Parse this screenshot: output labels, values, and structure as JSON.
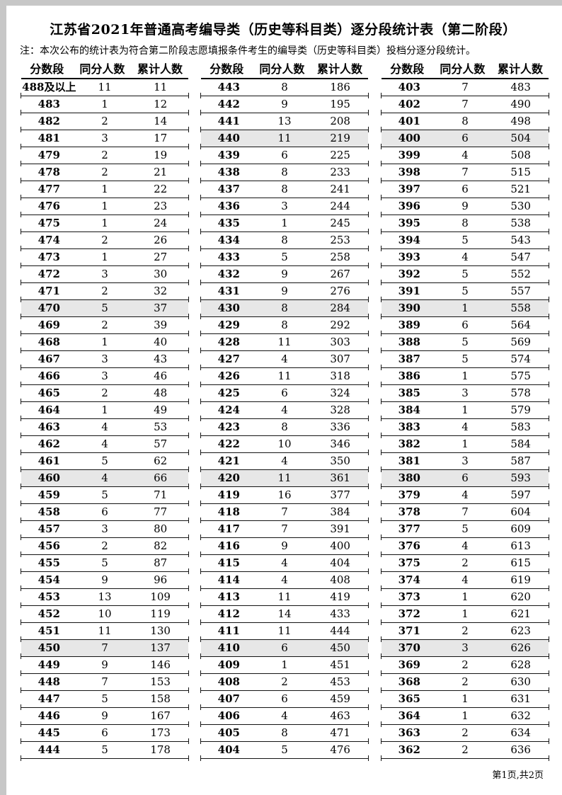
{
  "page": {
    "title": "江苏省2021年普通高考编导类（历史等科目类）逐分段统计表（第二阶段）",
    "note": "注：本次公布的统计表为符合第二阶段志愿填报条件考生的编导类（历史等科目类）投档分逐分段统计。",
    "footer": "第1页,共2页"
  },
  "table": {
    "headers": [
      "分数段",
      "同分人数",
      "累计人数"
    ],
    "highlight_color": "#e7e7e7",
    "line_color": "#141414",
    "columns": [
      {
        "rows": [
          [
            "488及以上",
            "11",
            "11"
          ],
          [
            "483",
            "1",
            "12"
          ],
          [
            "482",
            "2",
            "14"
          ],
          [
            "481",
            "3",
            "17"
          ],
          [
            "479",
            "2",
            "19"
          ],
          [
            "478",
            "2",
            "21"
          ],
          [
            "477",
            "1",
            "22"
          ],
          [
            "476",
            "1",
            "23"
          ],
          [
            "475",
            "1",
            "24"
          ],
          [
            "474",
            "2",
            "26"
          ],
          [
            "473",
            "1",
            "27"
          ],
          [
            "472",
            "3",
            "30"
          ],
          [
            "471",
            "2",
            "32"
          ],
          [
            "470",
            "5",
            "37"
          ],
          [
            "469",
            "2",
            "39"
          ],
          [
            "468",
            "1",
            "40"
          ],
          [
            "467",
            "3",
            "43"
          ],
          [
            "466",
            "3",
            "46"
          ],
          [
            "465",
            "2",
            "48"
          ],
          [
            "464",
            "1",
            "49"
          ],
          [
            "463",
            "4",
            "53"
          ],
          [
            "462",
            "4",
            "57"
          ],
          [
            "461",
            "5",
            "62"
          ],
          [
            "460",
            "4",
            "66"
          ],
          [
            "459",
            "5",
            "71"
          ],
          [
            "458",
            "6",
            "77"
          ],
          [
            "457",
            "3",
            "80"
          ],
          [
            "456",
            "2",
            "82"
          ],
          [
            "455",
            "5",
            "87"
          ],
          [
            "454",
            "9",
            "96"
          ],
          [
            "453",
            "13",
            "109"
          ],
          [
            "452",
            "10",
            "119"
          ],
          [
            "451",
            "11",
            "130"
          ],
          [
            "450",
            "7",
            "137"
          ],
          [
            "449",
            "9",
            "146"
          ],
          [
            "448",
            "7",
            "153"
          ],
          [
            "447",
            "5",
            "158"
          ],
          [
            "446",
            "9",
            "167"
          ],
          [
            "445",
            "6",
            "173"
          ],
          [
            "444",
            "5",
            "178"
          ]
        ]
      },
      {
        "rows": [
          [
            "443",
            "8",
            "186"
          ],
          [
            "442",
            "9",
            "195"
          ],
          [
            "441",
            "13",
            "208"
          ],
          [
            "440",
            "11",
            "219"
          ],
          [
            "439",
            "6",
            "225"
          ],
          [
            "438",
            "8",
            "233"
          ],
          [
            "437",
            "8",
            "241"
          ],
          [
            "436",
            "3",
            "244"
          ],
          [
            "435",
            "1",
            "245"
          ],
          [
            "434",
            "8",
            "253"
          ],
          [
            "433",
            "5",
            "258"
          ],
          [
            "432",
            "9",
            "267"
          ],
          [
            "431",
            "9",
            "276"
          ],
          [
            "430",
            "8",
            "284"
          ],
          [
            "429",
            "8",
            "292"
          ],
          [
            "428",
            "11",
            "303"
          ],
          [
            "427",
            "4",
            "307"
          ],
          [
            "426",
            "11",
            "318"
          ],
          [
            "425",
            "6",
            "324"
          ],
          [
            "424",
            "4",
            "328"
          ],
          [
            "423",
            "8",
            "336"
          ],
          [
            "422",
            "10",
            "346"
          ],
          [
            "421",
            "4",
            "350"
          ],
          [
            "420",
            "11",
            "361"
          ],
          [
            "419",
            "16",
            "377"
          ],
          [
            "418",
            "7",
            "384"
          ],
          [
            "417",
            "7",
            "391"
          ],
          [
            "416",
            "9",
            "400"
          ],
          [
            "415",
            "4",
            "404"
          ],
          [
            "414",
            "4",
            "408"
          ],
          [
            "413",
            "11",
            "419"
          ],
          [
            "412",
            "14",
            "433"
          ],
          [
            "411",
            "11",
            "444"
          ],
          [
            "410",
            "6",
            "450"
          ],
          [
            "409",
            "1",
            "451"
          ],
          [
            "408",
            "2",
            "453"
          ],
          [
            "407",
            "6",
            "459"
          ],
          [
            "406",
            "4",
            "463"
          ],
          [
            "405",
            "8",
            "471"
          ],
          [
            "404",
            "5",
            "476"
          ]
        ]
      },
      {
        "rows": [
          [
            "403",
            "7",
            "483"
          ],
          [
            "402",
            "7",
            "490"
          ],
          [
            "401",
            "8",
            "498"
          ],
          [
            "400",
            "6",
            "504"
          ],
          [
            "399",
            "4",
            "508"
          ],
          [
            "398",
            "7",
            "515"
          ],
          [
            "397",
            "6",
            "521"
          ],
          [
            "396",
            "9",
            "530"
          ],
          [
            "395",
            "8",
            "538"
          ],
          [
            "394",
            "5",
            "543"
          ],
          [
            "393",
            "4",
            "547"
          ],
          [
            "392",
            "5",
            "552"
          ],
          [
            "391",
            "5",
            "557"
          ],
          [
            "390",
            "1",
            "558"
          ],
          [
            "389",
            "6",
            "564"
          ],
          [
            "388",
            "5",
            "569"
          ],
          [
            "387",
            "5",
            "574"
          ],
          [
            "386",
            "1",
            "575"
          ],
          [
            "385",
            "3",
            "578"
          ],
          [
            "384",
            "1",
            "579"
          ],
          [
            "383",
            "4",
            "583"
          ],
          [
            "382",
            "1",
            "584"
          ],
          [
            "381",
            "3",
            "587"
          ],
          [
            "380",
            "6",
            "593"
          ],
          [
            "379",
            "4",
            "597"
          ],
          [
            "378",
            "7",
            "604"
          ],
          [
            "377",
            "5",
            "609"
          ],
          [
            "376",
            "4",
            "613"
          ],
          [
            "375",
            "2",
            "615"
          ],
          [
            "374",
            "4",
            "619"
          ],
          [
            "373",
            "1",
            "620"
          ],
          [
            "372",
            "1",
            "621"
          ],
          [
            "371",
            "2",
            "623"
          ],
          [
            "370",
            "3",
            "626"
          ],
          [
            "369",
            "2",
            "628"
          ],
          [
            "368",
            "2",
            "630"
          ],
          [
            "365",
            "1",
            "631"
          ],
          [
            "364",
            "1",
            "632"
          ],
          [
            "363",
            "2",
            "634"
          ],
          [
            "362",
            "2",
            "636"
          ]
        ]
      }
    ]
  }
}
